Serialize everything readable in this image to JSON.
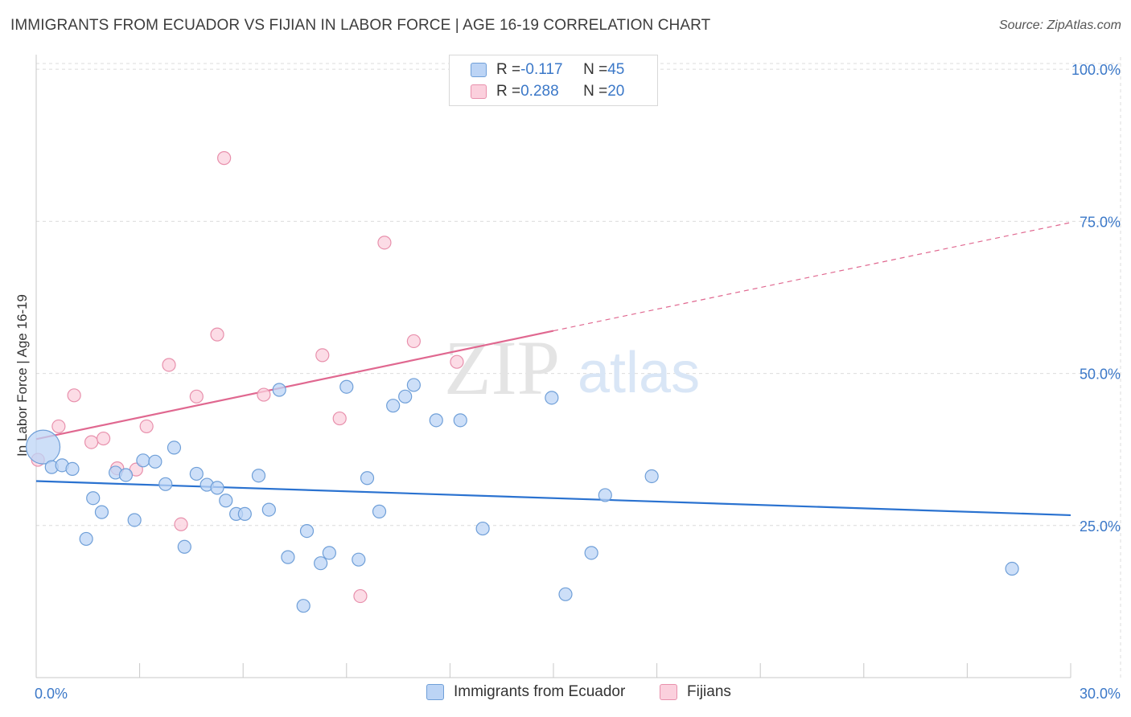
{
  "header": {
    "title": "IMMIGRANTS FROM ECUADOR VS FIJIAN IN LABOR FORCE | AGE 16-19 CORRELATION CHART",
    "source": "Source: ZipAtlas.com"
  },
  "watermark": {
    "part1": "ZIP",
    "part2": "atlas"
  },
  "legend_top": {
    "rows": [
      {
        "r_label": "R = ",
        "r_value": "-0.117",
        "n_label": "N = ",
        "n_value": "45"
      },
      {
        "r_label": "R = ",
        "r_value": "0.288",
        "n_label": "N = ",
        "n_value": "20"
      }
    ]
  },
  "legend_bottom": {
    "items": [
      {
        "label": "Immigrants from Ecuador"
      },
      {
        "label": "Fijians"
      }
    ]
  },
  "colors": {
    "blue_fill": "#bcd4f5",
    "blue_stroke": "#6f9fd8",
    "blue_line": "#2a72d0",
    "pink_fill": "#fbd0dd",
    "pink_stroke": "#e890ac",
    "pink_line": "#e06890",
    "axis_label": "#3b78c8",
    "grid": "#dcdcdc"
  },
  "chart_data": {
    "type": "scatter",
    "title": "IMMIGRANTS FROM ECUADOR VS FIJIAN IN LABOR FORCE | AGE 16-19 CORRELATION CHART",
    "xlabel": "",
    "ylabel": "In Labor Force | Age 16-19",
    "xlim": [
      0,
      30
    ],
    "ylim": [
      0,
      102
    ],
    "x_tick_labels": [
      "0.0%",
      "30.0%"
    ],
    "y_ticks": [
      25,
      50,
      75,
      100
    ],
    "y_tick_labels": [
      "25.0%",
      "50.0%",
      "75.0%",
      "100.0%"
    ],
    "grid": true,
    "series": [
      {
        "name": "Immigrants from Ecuador",
        "color": "#6f9fd8",
        "points": [
          {
            "x": 0.2,
            "y": 37.9,
            "big": true
          },
          {
            "x": 0.45,
            "y": 34.6
          },
          {
            "x": 0.75,
            "y": 34.9
          },
          {
            "x": 1.05,
            "y": 34.3
          },
          {
            "x": 1.45,
            "y": 22.8
          },
          {
            "x": 1.65,
            "y": 29.5
          },
          {
            "x": 1.9,
            "y": 27.2
          },
          {
            "x": 2.3,
            "y": 33.7
          },
          {
            "x": 2.6,
            "y": 33.3
          },
          {
            "x": 2.85,
            "y": 25.9
          },
          {
            "x": 3.1,
            "y": 35.7
          },
          {
            "x": 3.45,
            "y": 35.5
          },
          {
            "x": 3.75,
            "y": 31.8
          },
          {
            "x": 4.0,
            "y": 37.8
          },
          {
            "x": 4.3,
            "y": 21.5
          },
          {
            "x": 4.65,
            "y": 33.5
          },
          {
            "x": 4.95,
            "y": 31.7
          },
          {
            "x": 5.25,
            "y": 31.2
          },
          {
            "x": 5.5,
            "y": 29.1
          },
          {
            "x": 5.8,
            "y": 26.9
          },
          {
            "x": 6.05,
            "y": 26.9
          },
          {
            "x": 6.45,
            "y": 33.2
          },
          {
            "x": 6.75,
            "y": 27.6
          },
          {
            "x": 7.05,
            "y": 47.3
          },
          {
            "x": 7.3,
            "y": 19.8
          },
          {
            "x": 7.75,
            "y": 11.8
          },
          {
            "x": 7.85,
            "y": 24.1
          },
          {
            "x": 8.25,
            "y": 18.8
          },
          {
            "x": 8.5,
            "y": 20.5
          },
          {
            "x": 9.0,
            "y": 47.8
          },
          {
            "x": 9.35,
            "y": 19.4
          },
          {
            "x": 9.6,
            "y": 32.8
          },
          {
            "x": 9.95,
            "y": 27.3
          },
          {
            "x": 10.35,
            "y": 44.7
          },
          {
            "x": 10.7,
            "y": 46.2
          },
          {
            "x": 10.95,
            "y": 48.1
          },
          {
            "x": 11.6,
            "y": 42.3
          },
          {
            "x": 12.3,
            "y": 42.3
          },
          {
            "x": 12.95,
            "y": 24.5
          },
          {
            "x": 14.95,
            "y": 46.0
          },
          {
            "x": 15.35,
            "y": 13.7
          },
          {
            "x": 16.1,
            "y": 20.5
          },
          {
            "x": 16.5,
            "y": 30.0
          },
          {
            "x": 17.85,
            "y": 33.1
          },
          {
            "x": 28.3,
            "y": 17.9
          }
        ],
        "trend": {
          "x": [
            0,
            30
          ],
          "y": [
            32.3,
            26.7
          ],
          "style": "solid"
        }
      },
      {
        "name": "Fijians",
        "color": "#e890ac",
        "points": [
          {
            "x": 0.05,
            "y": 35.8
          },
          {
            "x": 0.65,
            "y": 41.3
          },
          {
            "x": 1.1,
            "y": 46.4
          },
          {
            "x": 1.6,
            "y": 38.7
          },
          {
            "x": 1.95,
            "y": 39.3
          },
          {
            "x": 2.35,
            "y": 34.4
          },
          {
            "x": 2.9,
            "y": 34.2
          },
          {
            "x": 3.2,
            "y": 41.3
          },
          {
            "x": 3.85,
            "y": 51.4
          },
          {
            "x": 4.2,
            "y": 25.2
          },
          {
            "x": 4.65,
            "y": 46.2
          },
          {
            "x": 5.25,
            "y": 56.4
          },
          {
            "x": 5.45,
            "y": 85.4
          },
          {
            "x": 6.6,
            "y": 46.5
          },
          {
            "x": 8.3,
            "y": 53.0
          },
          {
            "x": 8.8,
            "y": 42.6
          },
          {
            "x": 9.4,
            "y": 13.4
          },
          {
            "x": 10.1,
            "y": 71.5
          },
          {
            "x": 10.95,
            "y": 55.3
          },
          {
            "x": 12.2,
            "y": 51.9
          }
        ],
        "trend": {
          "x": [
            0,
            15.0,
            30
          ],
          "y": [
            39.2,
            57.0,
            74.8
          ],
          "style": "solid-then-dashed"
        }
      }
    ]
  }
}
